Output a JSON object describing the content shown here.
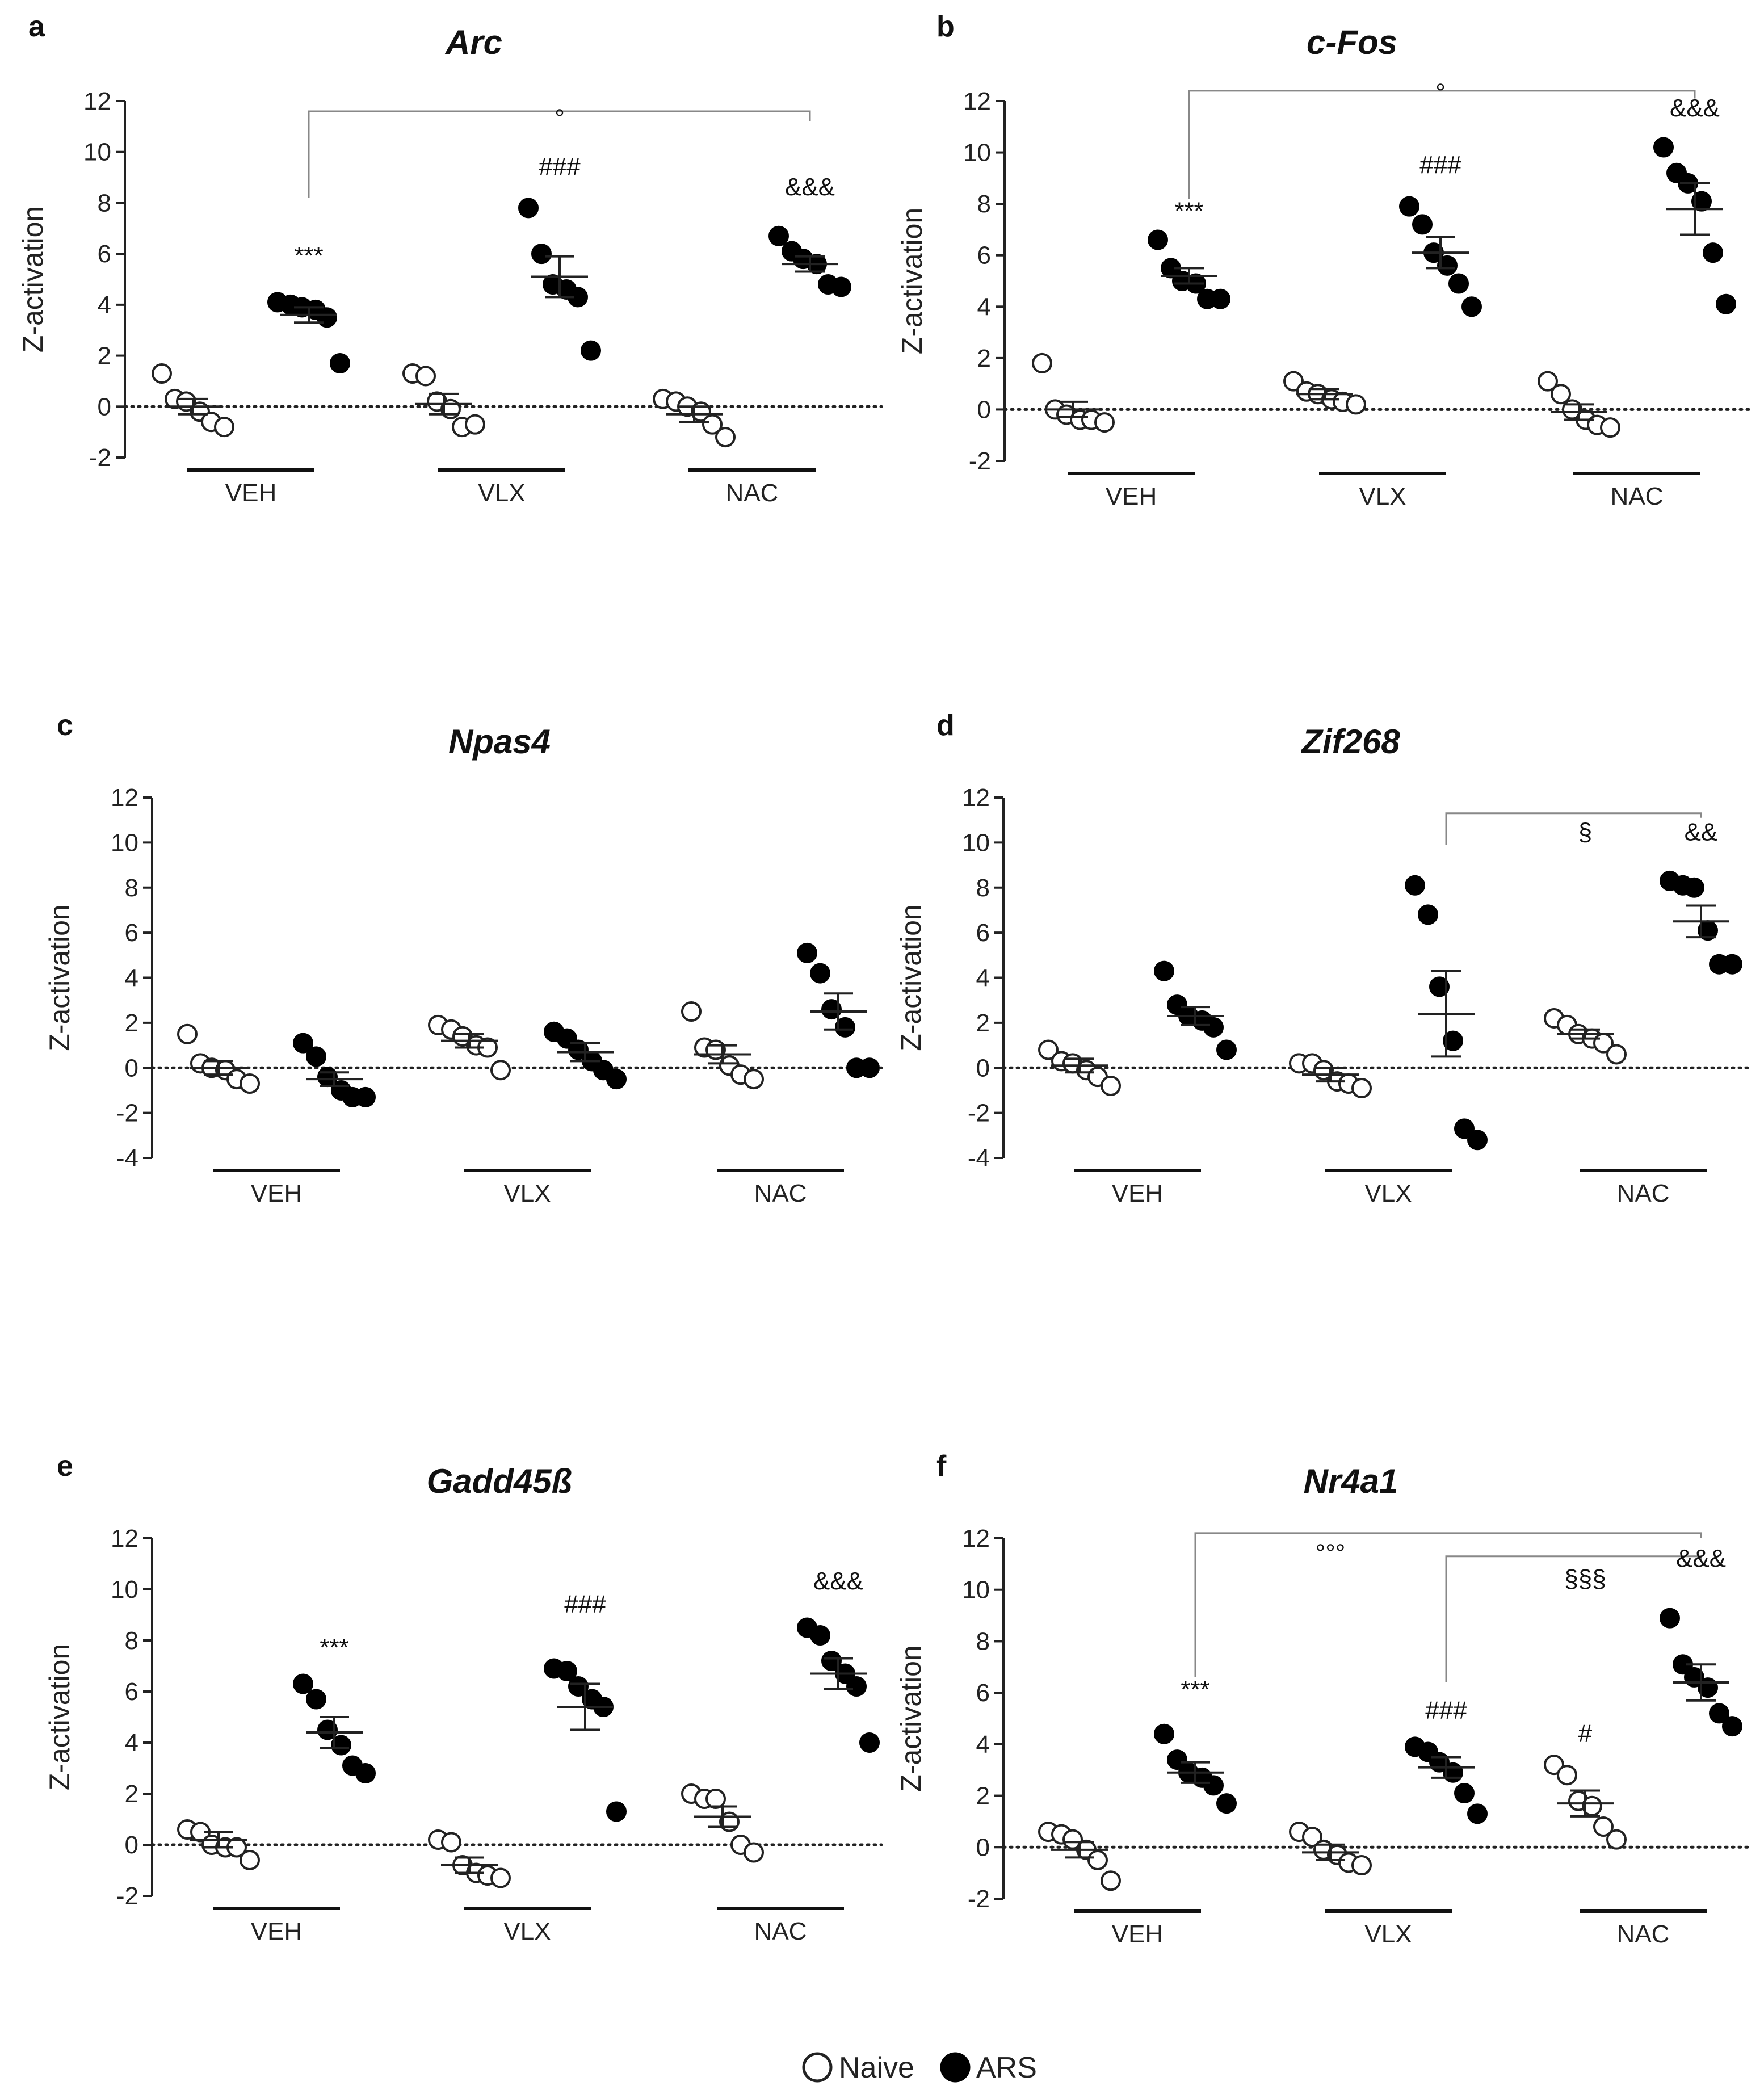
{
  "legend": {
    "naive_label": "Naive",
    "ars_label": "ARS"
  },
  "colors": {
    "naive_fill": "#ffffff",
    "ars_fill": "#000000",
    "stroke": "#222222",
    "bracket": "#888888"
  },
  "chart_data": [
    {
      "panel": "a",
      "type": "scatter",
      "title": "Arc",
      "ylabel": "Z-activation",
      "ylim": [
        -2,
        12
      ],
      "yticks": [
        -2,
        0,
        2,
        4,
        6,
        8,
        10,
        12
      ],
      "groups": [
        "VEH",
        "VLX",
        "NAC"
      ],
      "series": [
        {
          "name": "Naive",
          "mean": [
            0.0,
            0.1,
            -0.3
          ],
          "sem": [
            0.3,
            0.4,
            0.3
          ],
          "points": [
            [
              1.3,
              0.3,
              0.2,
              -0.2,
              -0.6,
              -0.8
            ],
            [
              1.3,
              1.2,
              0.2,
              -0.1,
              -0.8,
              -0.7
            ],
            [
              0.3,
              0.2,
              0.0,
              -0.2,
              -0.7,
              -1.2
            ]
          ]
        },
        {
          "name": "ARS",
          "mean": [
            3.6,
            5.1,
            5.6
          ],
          "sem": [
            0.3,
            0.8,
            0.3
          ],
          "points": [
            [
              4.1,
              4.0,
              3.9,
              3.8,
              3.5,
              1.7
            ],
            [
              7.8,
              6.0,
              4.8,
              4.6,
              4.3,
              2.2
            ],
            [
              6.7,
              6.1,
              5.8,
              5.6,
              4.8,
              4.7
            ]
          ]
        }
      ],
      "annotations": [
        {
          "text": "***",
          "group": "VEH",
          "series": "ARS",
          "y": 5.6
        },
        {
          "text": "###",
          "group": "VLX",
          "series": "ARS",
          "y": 9.1
        },
        {
          "text": "°",
          "group": "VLX",
          "series": "ARS",
          "y": 11.0
        },
        {
          "text": "&&&",
          "group": "NAC",
          "series": "ARS",
          "y": 8.3
        }
      ],
      "brackets": [
        {
          "from": {
            "group": "VEH",
            "series": "ARS"
          },
          "to": {
            "group": "NAC",
            "series": "ARS"
          },
          "top": 11.6,
          "left_bottom": 8.2,
          "right_bottom": 11.2
        }
      ]
    },
    {
      "panel": "b",
      "type": "scatter",
      "title": "c-Fos",
      "ylabel": "Z-activation",
      "ylim": [
        -2,
        12
      ],
      "yticks": [
        -2,
        0,
        2,
        4,
        6,
        8,
        10,
        12
      ],
      "groups": [
        "VEH",
        "VLX",
        "NAC"
      ],
      "series": [
        {
          "name": "Naive",
          "mean": [
            0.0,
            0.6,
            -0.1
          ],
          "sem": [
            0.3,
            0.2,
            0.3
          ],
          "points": [
            [
              1.8,
              0.0,
              -0.2,
              -0.4,
              -0.4,
              -0.5
            ],
            [
              1.1,
              0.7,
              0.6,
              0.4,
              0.3,
              0.2
            ],
            [
              1.1,
              0.6,
              0.0,
              -0.4,
              -0.6,
              -0.7
            ]
          ]
        },
        {
          "name": "ARS",
          "mean": [
            5.2,
            6.1,
            7.8
          ],
          "sem": [
            0.3,
            0.6,
            1.0
          ],
          "points": [
            [
              6.6,
              5.5,
              5.0,
              4.9,
              4.3,
              4.3
            ],
            [
              7.9,
              7.2,
              6.1,
              5.6,
              4.9,
              4.0
            ],
            [
              10.2,
              9.2,
              8.8,
              8.1,
              6.1,
              4.1
            ]
          ]
        }
      ],
      "annotations": [
        {
          "text": "***",
          "group": "VEH",
          "series": "ARS",
          "y": 7.4
        },
        {
          "text": "###",
          "group": "VLX",
          "series": "ARS",
          "y": 9.2
        },
        {
          "text": "°",
          "group": "VLX",
          "series": "ARS",
          "y": 12.0
        },
        {
          "text": "&&&",
          "group": "NAC",
          "series": "ARS",
          "y": 11.4
        }
      ],
      "brackets": [
        {
          "from": {
            "group": "VEH",
            "series": "ARS"
          },
          "to": {
            "group": "NAC",
            "series": "ARS"
          },
          "top": 12.4,
          "left_bottom": 8.2,
          "right_bottom": 12.1
        }
      ]
    },
    {
      "panel": "c",
      "type": "scatter",
      "title": "Npas4",
      "ylabel": "Z-activation",
      "ylim": [
        -4,
        12
      ],
      "yticks": [
        -4,
        -2,
        0,
        2,
        4,
        6,
        8,
        10,
        12
      ],
      "groups": [
        "VEH",
        "VLX",
        "NAC"
      ],
      "series": [
        {
          "name": "Naive",
          "mean": [
            0.0,
            1.2,
            0.6
          ],
          "sem": [
            0.3,
            0.3,
            0.4
          ],
          "points": [
            [
              1.5,
              0.2,
              0.0,
              -0.1,
              -0.5,
              -0.7
            ],
            [
              1.9,
              1.7,
              1.4,
              1.0,
              0.9,
              -0.1
            ],
            [
              2.5,
              0.9,
              0.8,
              0.1,
              -0.3,
              -0.5
            ]
          ]
        },
        {
          "name": "ARS",
          "mean": [
            -0.5,
            0.7,
            2.5
          ],
          "sem": [
            0.3,
            0.4,
            0.8
          ],
          "points": [
            [
              1.1,
              0.5,
              -0.4,
              -1.0,
              -1.3,
              -1.3
            ],
            [
              1.6,
              1.3,
              0.8,
              0.3,
              -0.1,
              -0.5
            ],
            [
              5.1,
              4.2,
              2.6,
              1.8,
              0.0,
              0.0
            ]
          ]
        }
      ],
      "annotations": [],
      "brackets": []
    },
    {
      "panel": "d",
      "type": "scatter",
      "title": "Zif268",
      "ylabel": "Z-activation",
      "ylim": [
        -4,
        12
      ],
      "yticks": [
        -4,
        -2,
        0,
        2,
        4,
        6,
        8,
        10,
        12
      ],
      "groups": [
        "VEH",
        "VLX",
        "NAC"
      ],
      "series": [
        {
          "name": "Naive",
          "mean": [
            0.1,
            -0.3,
            1.5
          ],
          "sem": [
            0.3,
            0.3,
            0.2
          ],
          "points": [
            [
              0.8,
              0.3,
              0.2,
              -0.1,
              -0.4,
              -0.8
            ],
            [
              0.2,
              0.2,
              -0.1,
              -0.6,
              -0.7,
              -0.9
            ],
            [
              2.2,
              1.9,
              1.5,
              1.3,
              1.1,
              0.6
            ]
          ]
        },
        {
          "name": "ARS",
          "mean": [
            2.3,
            2.4,
            6.5
          ],
          "sem": [
            0.4,
            1.9,
            0.7
          ],
          "points": [
            [
              4.3,
              2.8,
              2.3,
              2.1,
              1.8,
              0.8
            ],
            [
              8.1,
              6.8,
              3.6,
              1.2,
              -2.7,
              -3.2
            ],
            [
              8.3,
              8.1,
              8.0,
              6.1,
              4.6,
              4.6
            ]
          ]
        }
      ],
      "annotations": [
        {
          "text": "§",
          "group": "NAC",
          "series": "Naive",
          "y": 10.1
        },
        {
          "text": "&&",
          "group": "NAC",
          "series": "ARS",
          "y": 10.1
        }
      ],
      "brackets": [
        {
          "from": {
            "group": "VLX",
            "series": "ARS"
          },
          "to": {
            "group": "NAC",
            "series": "ARS"
          },
          "top": 11.3,
          "left_bottom": 9.9,
          "right_bottom": 11.1
        }
      ]
    },
    {
      "panel": "e",
      "type": "scatter",
      "title": "Gadd45ß",
      "ylabel": "Z-activation",
      "ylim": [
        -2,
        12
      ],
      "yticks": [
        -2,
        0,
        2,
        4,
        6,
        8,
        10,
        12
      ],
      "groups": [
        "VEH",
        "VLX",
        "NAC"
      ],
      "series": [
        {
          "name": "Naive",
          "mean": [
            0.2,
            -0.8,
            1.1
          ],
          "sem": [
            0.3,
            0.3,
            0.4
          ],
          "points": [
            [
              0.6,
              0.5,
              0.0,
              -0.1,
              -0.1,
              -0.6
            ],
            [
              0.2,
              0.1,
              -0.8,
              -1.1,
              -1.2,
              -1.3
            ],
            [
              2.0,
              1.8,
              1.8,
              0.9,
              0.0,
              -0.3
            ]
          ]
        },
        {
          "name": "ARS",
          "mean": [
            4.4,
            5.4,
            6.7
          ],
          "sem": [
            0.6,
            0.9,
            0.6
          ],
          "points": [
            [
              6.3,
              5.7,
              4.5,
              3.9,
              3.1,
              2.8
            ],
            [
              6.9,
              6.8,
              6.2,
              5.7,
              5.4,
              1.3
            ],
            [
              8.5,
              8.2,
              7.2,
              6.7,
              6.2,
              4.0
            ]
          ]
        }
      ],
      "annotations": [
        {
          "text": "***",
          "group": "VEH",
          "series": "ARS",
          "y": 7.4
        },
        {
          "text": "###",
          "group": "VLX",
          "series": "ARS",
          "y": 9.1
        },
        {
          "text": "&&&",
          "group": "NAC",
          "series": "ARS",
          "y": 10.0
        }
      ],
      "brackets": []
    },
    {
      "panel": "f",
      "type": "scatter",
      "title": "Nr4a1",
      "ylabel": "Z-activation",
      "ylim": [
        -2,
        12
      ],
      "yticks": [
        -2,
        0,
        2,
        4,
        6,
        8,
        10,
        12
      ],
      "groups": [
        "VEH",
        "VLX",
        "NAC"
      ],
      "series": [
        {
          "name": "Naive",
          "mean": [
            -0.1,
            -0.2,
            1.7
          ],
          "sem": [
            0.3,
            0.3,
            0.5
          ],
          "points": [
            [
              0.6,
              0.5,
              0.3,
              -0.1,
              -0.5,
              -1.3
            ],
            [
              0.6,
              0.4,
              -0.1,
              -0.3,
              -0.6,
              -0.7
            ],
            [
              3.2,
              2.8,
              1.8,
              1.6,
              0.8,
              0.3
            ]
          ]
        },
        {
          "name": "ARS",
          "mean": [
            2.9,
            3.1,
            6.4
          ],
          "sem": [
            0.4,
            0.4,
            0.7
          ],
          "points": [
            [
              4.4,
              3.4,
              2.9,
              2.7,
              2.4,
              1.7
            ],
            [
              3.9,
              3.7,
              3.3,
              2.9,
              2.1,
              1.3
            ],
            [
              8.9,
              7.1,
              6.6,
              6.2,
              5.2,
              4.7
            ]
          ]
        }
      ],
      "annotations": [
        {
          "text": "***",
          "group": "VEH",
          "series": "ARS",
          "y": 5.8
        },
        {
          "text": "###",
          "group": "VLX",
          "series": "ARS",
          "y": 5.0
        },
        {
          "text": "#",
          "group": "NAC",
          "series": "Naive",
          "y": 4.1
        },
        {
          "text": "°°°",
          "group": "VLX",
          "series": "Naive",
          "y": 11.1
        },
        {
          "text": "§§§",
          "group": "NAC",
          "series": "Naive",
          "y": 10.1
        },
        {
          "text": "&&&",
          "group": "NAC",
          "series": "ARS",
          "y": 10.9
        }
      ],
      "brackets": [
        {
          "from": {
            "group": "VEH",
            "series": "ARS"
          },
          "to": {
            "group": "NAC",
            "series": "ARS"
          },
          "top": 12.2,
          "left_bottom": 6.6,
          "right_bottom": 12.0
        },
        {
          "from": {
            "group": "VLX",
            "series": "ARS"
          },
          "to": {
            "group": "NAC",
            "series": "ARS"
          },
          "top": 11.3,
          "left_bottom": 6.4,
          "right_bottom": 11.1
        }
      ]
    }
  ]
}
